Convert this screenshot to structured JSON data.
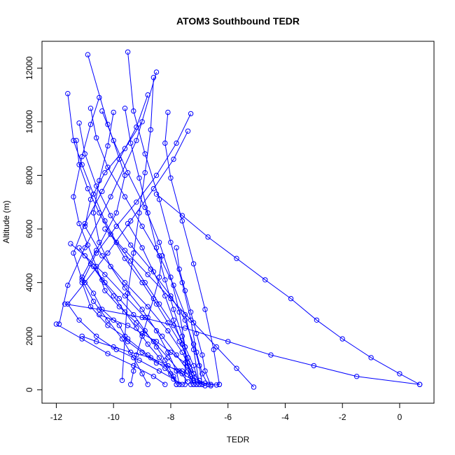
{
  "chart_data": {
    "type": "line",
    "title": "ATOM3 Southbound TEDR",
    "xlabel": "TEDR",
    "ylabel": "Altitude (m)",
    "xlim": [
      -12.5,
      1.2
    ],
    "ylim": [
      -500,
      13000
    ],
    "xticks": [
      -12,
      -10,
      -8,
      -6,
      -4,
      -2,
      0
    ],
    "yticks": [
      0,
      2000,
      4000,
      6000,
      8000,
      10000,
      12000
    ],
    "grid": false,
    "legend": "none",
    "marker": "open-circle",
    "color": "#0000ff",
    "series": [
      {
        "x": [
          -10.9,
          -10.2,
          -9.6,
          -9.9,
          -10.6,
          -11.1,
          -10.7,
          -10.4,
          -9.8,
          -9.5,
          -9.0,
          -8.5,
          -7.6,
          -7.3,
          -7.0,
          -6.8,
          -6.6,
          -6.4,
          -6.3
        ],
        "y": [
          12500,
          9900,
          8000,
          6600,
          5200,
          4200,
          3600,
          3000,
          2400,
          1800,
          1400,
          1000,
          700,
          500,
          350,
          250,
          200,
          180,
          200
        ]
      },
      {
        "x": [
          -9.5,
          -9.3,
          -8.9,
          -8.4,
          -8.0,
          -7.6,
          -7.3,
          -7.1,
          -6.9,
          -6.7
        ],
        "y": [
          12600,
          10400,
          8800,
          7100,
          5500,
          4000,
          2600,
          1400,
          600,
          200
        ]
      },
      {
        "x": [
          -8.5,
          -9.2,
          -10.1,
          -11.0,
          -11.6,
          -11.9
        ],
        "y": [
          11850,
          9300,
          7200,
          5300,
          3900,
          2450
        ]
      },
      {
        "x": [
          -11.6,
          -11.4,
          -11.1,
          -10.7,
          -10.3,
          -9.9,
          -9.4,
          -8.9,
          -8.4,
          -7.9,
          -7.5,
          -7.2,
          -7.0
        ],
        "y": [
          11050,
          9300,
          8400,
          7300,
          6300,
          5500,
          4800,
          4000,
          3200,
          2400,
          1600,
          900,
          200
        ]
      },
      {
        "x": [
          -10.5,
          -10.8,
          -11.1,
          -11.4,
          -11.2,
          -10.9,
          -10.6,
          -10.3,
          -9.8,
          -9.2,
          -8.6,
          -8.1,
          -7.7,
          -7.4
        ],
        "y": [
          10900,
          9900,
          8700,
          7200,
          6200,
          5400,
          4600,
          3700,
          3100,
          2500,
          1800,
          1200,
          700,
          300
        ]
      },
      {
        "x": [
          -7.3,
          -7.8,
          -8.5,
          -9.2,
          -9.9,
          -10.6,
          -11.1,
          -10.8,
          -10.2,
          -9.5,
          -8.8,
          -8.2,
          -7.7
        ],
        "y": [
          10300,
          9200,
          8000,
          7000,
          6100,
          5100,
          4000,
          3100,
          2400,
          1900,
          1300,
          800,
          200
        ]
      },
      {
        "x": [
          -11.2,
          -11.0,
          -10.6,
          -10.1,
          -9.4,
          -8.7,
          -8.0,
          -7.5,
          -7.2,
          -7.0,
          -6.9
        ],
        "y": [
          9950,
          8800,
          7600,
          6500,
          5400,
          4500,
          3500,
          2600,
          1700,
          900,
          200
        ]
      },
      {
        "x": [
          -7.4,
          -7.9,
          -8.6,
          -9.4,
          -10.2,
          -11.0,
          -11.6,
          -11.2,
          -10.6,
          -9.9,
          -9.1,
          -8.4,
          -7.9,
          -7.6
        ],
        "y": [
          9650,
          8600,
          7500,
          6300,
          5100,
          4000,
          3200,
          2600,
          2000,
          1500,
          1100,
          700,
          400,
          200
        ]
      },
      {
        "x": [
          -9.0,
          -9.6,
          -10.3,
          -10.8,
          -11.0,
          -10.4,
          -9.6,
          -8.8,
          -8.1,
          -7.6,
          -7.3,
          -7.2
        ],
        "y": [
          10000,
          9000,
          8100,
          7100,
          6100,
          5000,
          4000,
          3100,
          2200,
          1400,
          700,
          200
        ]
      },
      {
        "x": [
          -8.1,
          -8.2,
          -8.0,
          -7.6,
          -7.2,
          -6.8,
          -6.5,
          -6.3
        ],
        "y": [
          10350,
          9200,
          7900,
          6300,
          4700,
          3000,
          1500,
          200
        ]
      },
      {
        "x": [
          -11.3,
          -11.2,
          -10.9,
          -10.5,
          -10.1,
          -9.6,
          -9.0,
          -8.5,
          -8.1,
          -7.7,
          -7.4,
          -7.2,
          -7.1
        ],
        "y": [
          9300,
          8400,
          7500,
          6600,
          5800,
          4900,
          4000,
          3200,
          2500,
          1800,
          1200,
          600,
          200
        ]
      },
      {
        "x": [
          -10.8,
          -10.6,
          -10.2,
          -9.6,
          -9.0,
          -8.4,
          -7.9,
          -7.5,
          -7.2,
          -7.0
        ],
        "y": [
          10500,
          9400,
          8300,
          7200,
          6100,
          5000,
          3900,
          2800,
          1500,
          200
        ]
      },
      {
        "x": [
          -9.6,
          -9.4,
          -9.1,
          -8.8,
          -8.5,
          -8.2,
          -7.9,
          -7.6,
          -7.4,
          -7.3
        ],
        "y": [
          10500,
          9200,
          7900,
          6600,
          5300,
          4100,
          3000,
          2000,
          1000,
          200
        ]
      },
      {
        "x": [
          -10.0,
          -10.2,
          -10.5,
          -10.7,
          -10.5,
          -10.1,
          -9.6,
          -9.0,
          -8.5,
          -8.1,
          -7.8,
          -7.7
        ],
        "y": [
          10350,
          9100,
          7800,
          6600,
          5500,
          4600,
          3800,
          3000,
          2200,
          1400,
          700,
          200
        ]
      },
      {
        "x": [
          -10.4,
          -10.0,
          -9.5,
          -8.9,
          -8.4,
          -8.0,
          -7.7,
          -7.5,
          -7.5
        ],
        "y": [
          10400,
          9300,
          8100,
          6800,
          5500,
          4200,
          2900,
          1600,
          200
        ]
      },
      {
        "x": [
          -8.8,
          -9.2,
          -9.8,
          -10.4,
          -11.0,
          -11.4,
          -11.1,
          -10.7,
          -10.2,
          -9.7,
          -9.3,
          -9.0,
          -8.8
        ],
        "y": [
          11000,
          9800,
          8600,
          7400,
          6200,
          5100,
          4100,
          3300,
          2600,
          1900,
          1200,
          600,
          200
        ]
      },
      {
        "x": [
          -8.6,
          -8.7,
          -8.9,
          -9.1,
          -9.3,
          -9.5,
          -9.6,
          -9.7
        ],
        "y": [
          11650,
          9700,
          8100,
          6600,
          5100,
          3600,
          2000,
          350
        ]
      },
      {
        "x": [
          -11.7,
          -10.5,
          -9.0,
          -7.5,
          -6.0,
          -4.5,
          -3.0,
          -1.5,
          0.7
        ],
        "y": [
          3200,
          3000,
          2700,
          2300,
          1800,
          1300,
          900,
          500,
          200
        ]
      },
      {
        "x": [
          -10.3,
          -9.6,
          -8.8,
          -8.0,
          -7.2,
          -6.4,
          -5.7,
          -5.1
        ],
        "y": [
          6000,
          5200,
          4300,
          3400,
          2500,
          1600,
          800,
          100
        ]
      },
      {
        "x": [
          -8.5,
          -7.6,
          -6.7,
          -5.7,
          -4.7,
          -3.8,
          -2.9,
          -2.0,
          -1.0,
          0.0,
          0.7
        ],
        "y": [
          7300,
          6500,
          5700,
          4900,
          4100,
          3400,
          2600,
          1900,
          1200,
          600,
          200
        ]
      },
      {
        "x": [
          -12.0,
          -11.1,
          -10.2,
          -9.3,
          -8.6,
          -8.2
        ],
        "y": [
          2450,
          1900,
          1350,
          900,
          500,
          200
        ]
      },
      {
        "x": [
          -11.2,
          -10.8,
          -10.4,
          -10.0,
          -9.6,
          -9.2,
          -8.8,
          -8.4,
          -8.0,
          -7.8
        ],
        "y": [
          5300,
          4700,
          4100,
          3500,
          2900,
          2300,
          1700,
          1200,
          600,
          200
        ]
      },
      {
        "x": [
          -10.7,
          -10.3,
          -9.8,
          -9.3,
          -8.9,
          -8.5,
          -8.2,
          -7.9,
          -7.8
        ],
        "y": [
          4600,
          4000,
          3400,
          2800,
          2200,
          1600,
          1100,
          500,
          200
        ]
      },
      {
        "x": [
          -11.1,
          -10.6,
          -10.0,
          -9.4,
          -8.7,
          -8.1,
          -7.6,
          -7.2,
          -6.8
        ],
        "y": [
          2000,
          1800,
          1600,
          1400,
          1200,
          900,
          600,
          350,
          150
        ]
      },
      {
        "x": [
          -7.8,
          -7.7,
          -7.5,
          -7.3,
          -7.1,
          -6.9,
          -6.8,
          -6.6
        ],
        "y": [
          5300,
          4500,
          3700,
          2900,
          2100,
          1300,
          700,
          150
        ]
      },
      {
        "x": [
          -10.5,
          -10.0,
          -9.5,
          -9.0,
          -8.5,
          -8.0,
          -7.5,
          -7.2,
          -6.9
        ],
        "y": [
          2800,
          2600,
          2400,
          2100,
          1800,
          1400,
          1000,
          600,
          200
        ]
      },
      {
        "x": [
          -9.5,
          -9.0,
          -8.6,
          -8.2,
          -7.9,
          -7.6,
          -7.4,
          -7.1
        ],
        "y": [
          6200,
          5300,
          4400,
          3500,
          2600,
          1700,
          900,
          200
        ]
      },
      {
        "x": [
          -8.3,
          -8.4,
          -8.6,
          -8.8,
          -9.0,
          -9.2,
          -9.3,
          -9.4
        ],
        "y": [
          5000,
          4200,
          3400,
          2700,
          2000,
          1300,
          700,
          200
        ]
      },
      {
        "x": [
          -11.5,
          -11.0,
          -10.3,
          -9.6,
          -8.9,
          -8.3,
          -7.8,
          -7.4,
          -7.2
        ],
        "y": [
          5450,
          5000,
          4300,
          3500,
          2700,
          2000,
          1300,
          700,
          200
        ]
      }
    ]
  }
}
